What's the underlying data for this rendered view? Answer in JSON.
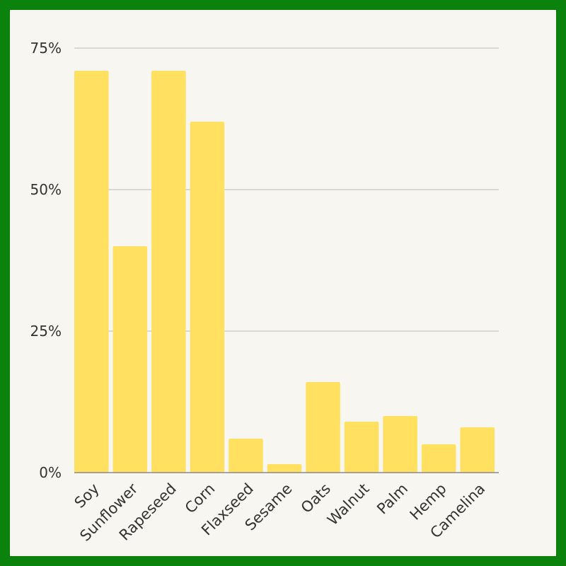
{
  "colors": {
    "frame": "#0b820b",
    "background": "#f8f6f1",
    "bar": "#ffe060",
    "grid": "#bbbbbb",
    "axis": "#888888",
    "text": "#333333"
  },
  "chart_data": {
    "type": "bar",
    "title": "",
    "xlabel": "",
    "ylabel": "",
    "categories": [
      "Soy",
      "Sunflower",
      "Rapeseed",
      "Corn",
      "Flaxseed",
      "Sesame",
      "Oats",
      "Walnut",
      "Palm",
      "Hemp",
      "Camelina"
    ],
    "series": [
      {
        "values": [
          71,
          40,
          71,
          62,
          6,
          1.5,
          16,
          9,
          10,
          5,
          8
        ]
      }
    ],
    "value_format": "percent",
    "ylim": [
      0,
      75
    ],
    "yticks": [
      0,
      25,
      50,
      75
    ],
    "ytick_labels": [
      "0%",
      "25%",
      "50%",
      "75%"
    ],
    "grid": true,
    "legend": "none"
  }
}
